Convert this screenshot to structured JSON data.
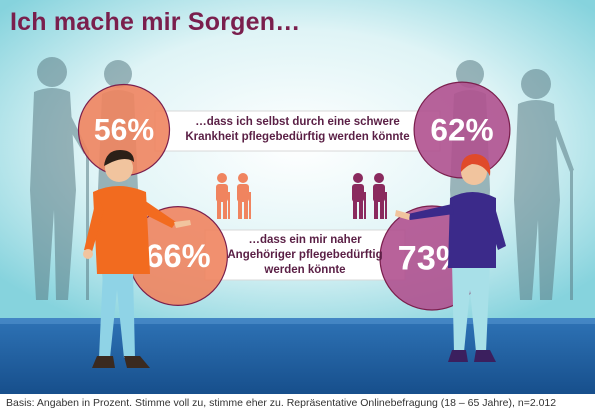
{
  "title": "Ich mache mir Sorgen…",
  "footer": "Basis: Angaben in Prozent. Stimme voll zu, stimme eher zu. Repräsentative Onlinebefragung (18 – 65 Jahre), n=2.012",
  "colors": {
    "left_bubble": "#f0845f",
    "right_bubble": "#b0518f",
    "bubble_outline": "#7a1f4d",
    "title": "#7a1f4d",
    "floor": "#1f5fa3"
  },
  "chart_data": {
    "type": "bar",
    "title": "Ich mache mir Sorgen…",
    "categories": [
      "…dass ich selbst durch eine schwere Krankheit pflegebedürftig werden könnte",
      "…dass ein mir naher Angehöriger pflegebedürftig werden könnte"
    ],
    "statements": [
      [
        "…dass ich selbst durch eine schwere",
        "Krankheit pflegebedürftig werden könnte"
      ],
      [
        "…dass ein mir naher",
        "Angehöriger pflegebedürftig",
        "werden könnte"
      ]
    ],
    "series": [
      {
        "values": [
          56,
          66
        ],
        "labels": [
          "56%",
          "66%"
        ]
      },
      {
        "values": [
          62,
          73
        ],
        "labels": [
          "62%",
          "73%"
        ]
      }
    ],
    "unit": "%"
  }
}
